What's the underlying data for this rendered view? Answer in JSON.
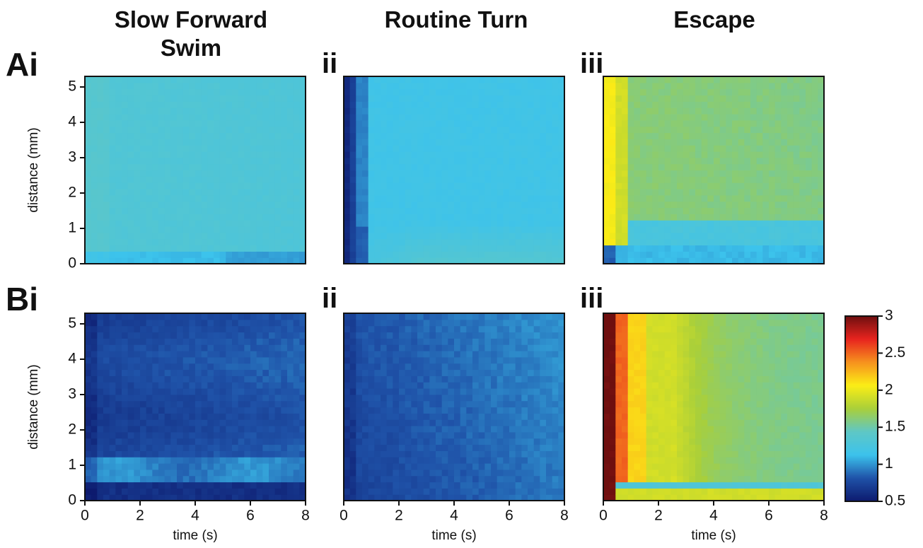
{
  "columns": {
    "slow_forward": {
      "line1": "Slow Forward",
      "line2": "Swim"
    },
    "routine_turn": "Routine Turn",
    "escape": "Escape"
  },
  "panel_labels": {
    "A_i": "Ai",
    "A_ii": "ii",
    "A_iii": "iii",
    "B_i": "Bi",
    "B_ii": "ii",
    "B_iii": "iii"
  },
  "colors": {
    "colormap": [
      "#0d1a6e",
      "#1f52a8",
      "#3cc3ec",
      "#5ec7c6",
      "#a9cf3a",
      "#fbed16",
      "#f6921e",
      "#e8241f",
      "#6e0f0f"
    ],
    "frame": "#111111"
  },
  "chart_data": [
    {
      "id": "Ai",
      "type": "heatmap",
      "behavior": "Slow Forward Swim",
      "xlabel": "",
      "ylabel": "distance (mm)",
      "xlim": [
        0,
        8
      ],
      "ylim": [
        0,
        5.3
      ],
      "yticks": [
        0,
        1,
        2,
        3,
        4,
        5
      ],
      "xticks": [],
      "x": [
        0,
        8
      ],
      "y": [
        0,
        5.3
      ],
      "z_summary": {
        "base": 1.32,
        "near_time0_distance0": 1.05,
        "bottom_band": 1.08
      }
    },
    {
      "id": "Aii",
      "type": "heatmap",
      "behavior": "Routine Turn",
      "xlabel": "",
      "ylabel": "",
      "xlim": [
        0,
        8
      ],
      "ylim": [
        0,
        5.3
      ],
      "xticks": [],
      "yticks": [],
      "x": [
        0,
        8
      ],
      "y": [
        0,
        5.3
      ],
      "z_summary": {
        "base": 1.18,
        "early_time_strip": 0.6,
        "bottom_right": 1.38
      }
    },
    {
      "id": "Aiii",
      "type": "heatmap",
      "behavior": "Escape",
      "xlabel": "",
      "ylabel": "",
      "xlim": [
        0,
        8
      ],
      "ylim": [
        0,
        5.3
      ],
      "xticks": [],
      "yticks": [],
      "x": [
        0,
        8
      ],
      "y": [
        0,
        5.3
      ],
      "z_summary": {
        "base": 1.6,
        "early_time_strip": 2.1,
        "bottom_band": 1.1
      }
    },
    {
      "id": "Bi",
      "type": "heatmap",
      "behavior": "Slow Forward Swim",
      "xlabel": "time (s)",
      "ylabel": "distance (mm)",
      "xlim": [
        0,
        8
      ],
      "ylim": [
        0,
        5.3
      ],
      "xticks": [
        0,
        2,
        4,
        6,
        8
      ],
      "yticks": [
        0,
        1,
        2,
        3,
        4,
        5
      ],
      "x": [
        0,
        8
      ],
      "y": [
        0,
        5.3
      ],
      "z_summary": {
        "base": 0.78,
        "band_0p5_to_1p2mm": 1.0,
        "bottom": 0.62
      }
    },
    {
      "id": "Bii",
      "type": "heatmap",
      "behavior": "Routine Turn",
      "xlabel": "time (s)",
      "ylabel": "",
      "xlim": [
        0,
        8
      ],
      "ylim": [
        0,
        5.3
      ],
      "xticks": [
        0,
        2,
        4,
        6,
        8
      ],
      "yticks": [],
      "x": [
        0,
        8
      ],
      "y": [
        0,
        5.3
      ],
      "z_summary": {
        "base": 0.82,
        "top_right": 1.0,
        "bottom_left": 0.62
      }
    },
    {
      "id": "Biii",
      "type": "heatmap",
      "behavior": "Escape",
      "xlabel": "time (s)",
      "ylabel": "",
      "xlim": [
        0,
        8
      ],
      "ylim": [
        0,
        5.3
      ],
      "xticks": [
        0,
        2,
        4,
        6,
        8
      ],
      "yticks": [],
      "x": [
        0,
        8
      ],
      "y": [
        0,
        5.3
      ],
      "z_summary": {
        "early_time": 3.0,
        "time_1s": 2.4,
        "time_2s": 1.9,
        "late_time": 1.5
      }
    }
  ],
  "colorbar": {
    "range": [
      0.5,
      3
    ],
    "ticks": [
      "3",
      "2.5",
      "2",
      "1.5",
      "1",
      "0.5"
    ]
  }
}
